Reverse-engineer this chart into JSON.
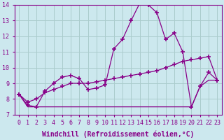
{
  "line1_x": [
    0,
    1,
    2,
    3,
    4,
    5,
    6,
    7,
    8,
    9,
    10,
    11,
    12,
    13,
    14,
    15,
    16,
    17,
    18,
    19,
    20,
    21,
    22,
    23
  ],
  "line1_y": [
    8.3,
    7.6,
    7.5,
    8.5,
    9.0,
    9.4,
    9.5,
    9.3,
    8.6,
    8.7,
    8.9,
    11.2,
    11.8,
    13.0,
    14.1,
    14.0,
    13.5,
    11.8,
    12.2,
    11.0,
    7.5,
    8.8,
    9.7,
    9.2
  ],
  "line2_x": [
    0,
    1,
    2,
    3,
    4,
    5,
    6,
    7,
    8,
    9,
    10,
    11,
    12,
    13,
    14,
    15,
    16,
    17,
    18,
    19,
    20,
    21,
    22,
    23
  ],
  "line2_y": [
    8.3,
    7.8,
    8.0,
    8.4,
    8.6,
    8.8,
    9.0,
    9.0,
    9.0,
    9.1,
    9.2,
    9.3,
    9.4,
    9.5,
    9.6,
    9.7,
    9.8,
    10.0,
    10.2,
    10.4,
    10.5,
    10.6,
    10.7,
    9.2
  ],
  "line3_x": [
    0,
    1,
    2,
    3,
    4,
    5,
    6,
    7,
    8,
    9,
    10,
    11,
    12,
    13,
    14,
    15,
    16,
    17,
    18,
    19,
    20,
    21,
    22,
    23
  ],
  "line3_y": [
    8.3,
    7.5,
    7.5,
    7.5,
    7.5,
    7.5,
    7.5,
    7.5,
    7.5,
    7.5,
    7.5,
    7.5,
    7.5,
    7.5,
    7.5,
    7.5,
    7.5,
    7.5,
    7.5,
    7.5,
    7.5,
    8.8,
    9.2,
    9.2
  ],
  "line_color": "#880088",
  "bg_color": "#cce8ee",
  "grid_color": "#aacccc",
  "xlim": [
    -0.5,
    23.5
  ],
  "ylim": [
    7,
    14
  ],
  "yticks": [
    7,
    8,
    9,
    10,
    11,
    12,
    13,
    14
  ],
  "xticks": [
    0,
    1,
    2,
    3,
    4,
    5,
    6,
    7,
    8,
    9,
    10,
    11,
    12,
    13,
    14,
    15,
    16,
    17,
    18,
    19,
    20,
    21,
    22,
    23
  ],
  "xlabel": "Windchill (Refroidissement éolien,°C)",
  "marker": "+",
  "markersize": 4,
  "linewidth": 0.9,
  "xlabel_fontsize": 7.0,
  "tick_fontsize": 6.0
}
